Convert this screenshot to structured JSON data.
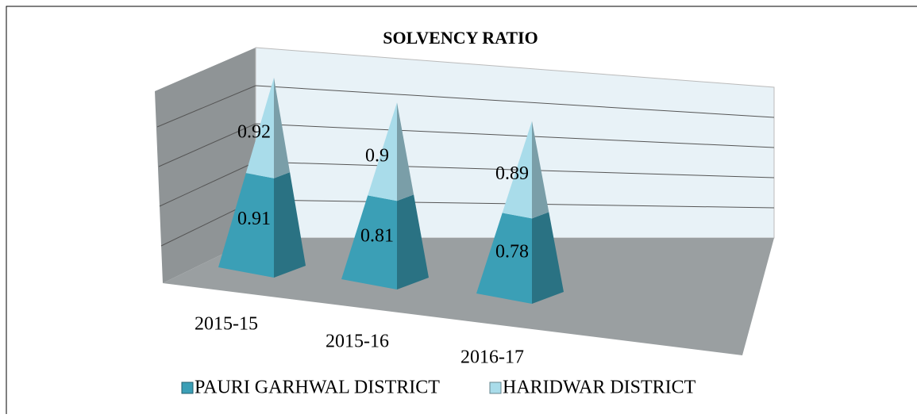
{
  "chart_data": {
    "type": "pyramid",
    "title": "SOLVENCY RATIO",
    "categories": [
      "2015-15",
      "2015-16",
      "2016-17"
    ],
    "series": [
      {
        "name": "PAURI GARHWAL DISTRICT",
        "color": "#3b9fb6",
        "values": [
          0.91,
          0.81,
          0.78
        ]
      },
      {
        "name": "HARIDWAR DISTRICT",
        "color": "#a9dcea",
        "values": [
          0.92,
          0.9,
          0.89
        ]
      }
    ],
    "ylim": [
      0,
      2
    ],
    "stacked": true,
    "grid": true
  }
}
